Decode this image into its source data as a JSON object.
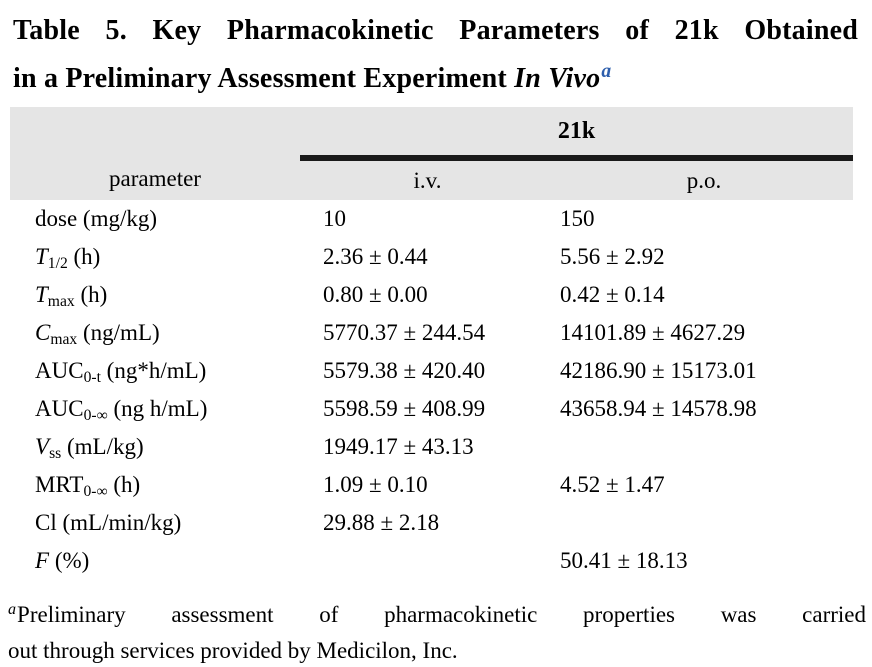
{
  "title": {
    "line1": "Table 5. Key Pharmacokinetic Parameters of 21k Obtained",
    "line2_text": "in a Preliminary Assessment Experiment ",
    "line2_italic": "In Vivo",
    "footnote_marker": "a"
  },
  "table": {
    "compound_header": "21k",
    "col_headers": {
      "parameter": "parameter",
      "iv": "i.v.",
      "po": "p.o."
    },
    "rows": [
      {
        "name_rm": "dose",
        "name_it": "",
        "sub": "",
        "unit": " (mg/kg)",
        "iv": "10",
        "po": "150"
      },
      {
        "name_rm": "",
        "name_it": "T",
        "sub": "1/2",
        "unit": " (h)",
        "iv": "2.36 ± 0.44",
        "po": "5.56 ± 2.92"
      },
      {
        "name_rm": "",
        "name_it": "T",
        "sub": "max",
        "unit": " (h)",
        "iv": "0.80 ± 0.00",
        "po": "0.42 ± 0.14"
      },
      {
        "name_rm": "",
        "name_it": "C",
        "sub": "max",
        "unit": " (ng/mL)",
        "iv": "5770.37 ± 244.54",
        "po": "14101.89 ± 4627.29"
      },
      {
        "name_rm": "AUC",
        "name_it": "",
        "sub": "0-t",
        "unit": " (ng*h/mL)",
        "iv": "5579.38 ± 420.40",
        "po": "42186.90 ± 15173.01"
      },
      {
        "name_rm": "AUC",
        "name_it": "",
        "sub": "0-∞",
        "unit": " (ng h/mL)",
        "iv": "5598.59 ± 408.99",
        "po": "43658.94 ± 14578.98"
      },
      {
        "name_rm": "",
        "name_it": "V",
        "sub": "ss",
        "unit": " (mL/kg)",
        "iv": "1949.17 ± 43.13",
        "po": ""
      },
      {
        "name_rm": "MRT",
        "name_it": "",
        "sub": "0-∞",
        "unit": " (h)",
        "iv": "1.09 ± 0.10",
        "po": "4.52 ± 1.47"
      },
      {
        "name_rm": "Cl",
        "name_it": "",
        "sub": "",
        "unit": " (mL/min/kg)",
        "iv": "29.88 ± 2.18",
        "po": ""
      },
      {
        "name_rm": "",
        "name_it": "F",
        "sub": "",
        "unit": " (%)",
        "iv": "",
        "po": "50.41 ± 18.13"
      }
    ]
  },
  "footnote": {
    "marker": "a",
    "line1": "Preliminary assessment of pharmacokinetic properties was carried",
    "line2": "out through services provided by Medicilon, Inc."
  },
  "colors": {
    "header_bg": "#e5e5e5",
    "rule": "#1a1a1a",
    "title_marker_blue": "#2d5eac"
  }
}
